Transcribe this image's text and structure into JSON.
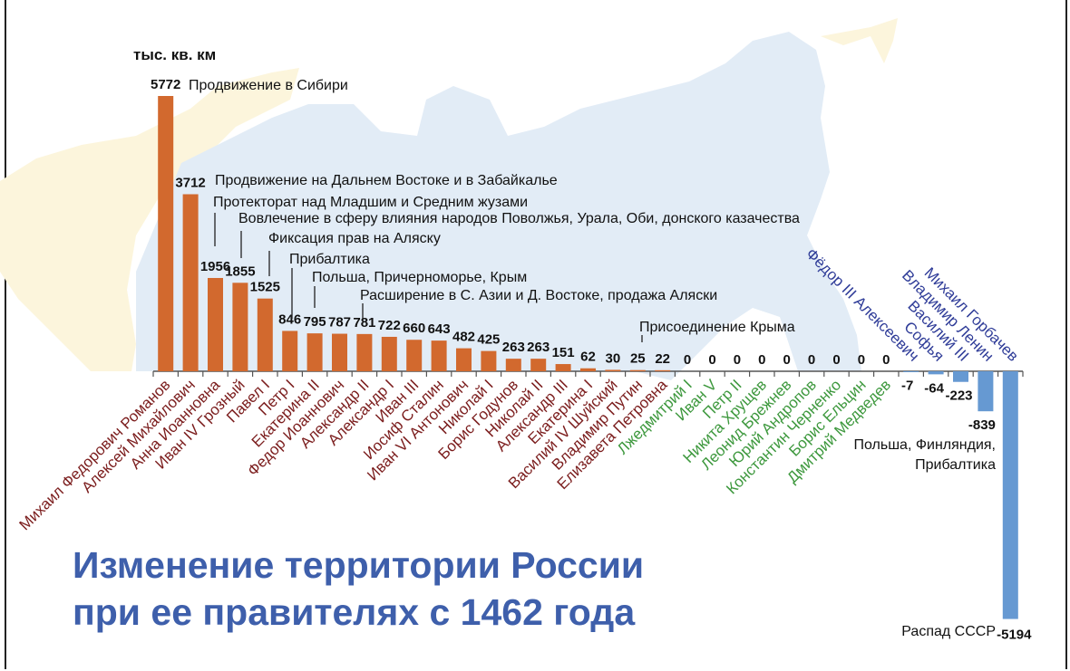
{
  "chart_data": {
    "type": "bar",
    "title": "Изменение территории России при ее правителях с 1462 года",
    "title_lines": [
      "Изменение территории России",
      "при ее правителях с 1462 года"
    ],
    "ylabel": "тыс. кв. км",
    "ylim": [
      -5194,
      5772
    ],
    "grid": false,
    "categories": [
      "Михаил Федорович Романов",
      "Алексей Михайлович",
      "Анна Иоанновна",
      "Иван IV Грозный",
      "Павел I",
      "Петр I",
      "Екатерина II",
      "Федор Иоаннович",
      "Александр II",
      "Александр I",
      "Иван III",
      "Иосиф Сталин",
      "Иван VI Антонович",
      "Николай I",
      "Борис Годунов",
      "Николай II",
      "Александр III",
      "Екатерина I",
      "Василий IV Шуйский",
      "Владимир Путин",
      "Елизавета Петровна",
      "Лжедмитрий I",
      "Иван V",
      "Петр II",
      "Никита Хрущев",
      "Леонид Брежнев",
      "Юрий Андропов",
      "Константин Черненко",
      "Борис Ельцин",
      "Дмитрий Медведев",
      "Фёдор III Алексеевич",
      "Софья",
      "Василий III",
      "Владимир Ленин",
      "Михаил Горбачев"
    ],
    "values": [
      5772,
      3712,
      1956,
      1855,
      1525,
      846,
      795,
      787,
      781,
      722,
      660,
      643,
      482,
      425,
      263,
      263,
      151,
      62,
      30,
      25,
      22,
      0,
      0,
      0,
      0,
      0,
      0,
      0,
      0,
      0,
      -7,
      -64,
      -223,
      -839,
      -5194
    ],
    "value_labels": [
      "5772",
      "3712",
      "1956",
      "1855",
      "1525",
      "846",
      "795",
      "787",
      "781",
      "722",
      "660",
      "643",
      "482",
      "425",
      "263",
      "263",
      "151",
      "62",
      "30",
      "25",
      "22",
      "0",
      "0",
      "0",
      "0",
      "0",
      "0",
      "0",
      "0",
      "0",
      "-7",
      "-64",
      "-223",
      "-839",
      "-5194"
    ],
    "annotations": [
      {
        "category_index": 0,
        "text": "Продвижение в Сибири"
      },
      {
        "category_index": 1,
        "text": "Продвижение на Дальнем Востоке и в Забайкалье"
      },
      {
        "category_index": 2,
        "text": "Протекторат над Младшим и Средним жузами"
      },
      {
        "category_index": 3,
        "text": "Вовлечение в сферу влияния народов Поволжья, Урала, Оби, донского казачества"
      },
      {
        "category_index": 4,
        "text": "Фиксация прав на Аляску"
      },
      {
        "category_index": 5,
        "text": "Прибалтика"
      },
      {
        "category_index": 6,
        "text": "Польша, Причерноморье, Крым"
      },
      {
        "category_index": 8,
        "text": "Расширение в С. Азии и Д. Востоке, продажа Аляски"
      },
      {
        "category_index": 19,
        "text": "Присоединение Крыма"
      },
      {
        "category_index": 33,
        "text": "Польша, Финляндия, Прибалтика"
      },
      {
        "category_index": 34,
        "text": "Распад СССР"
      }
    ],
    "colors": {
      "gain_bar": "#d2692e",
      "loss_bar": "#6699d2",
      "gain_label": "#7b1d1d",
      "zero_label": "#3d983d",
      "loss_label": "#2f3c98",
      "title": "#3e5fab",
      "map_russia": "#e2ecf6",
      "map_neighbors": "#fcf5dc"
    }
  }
}
